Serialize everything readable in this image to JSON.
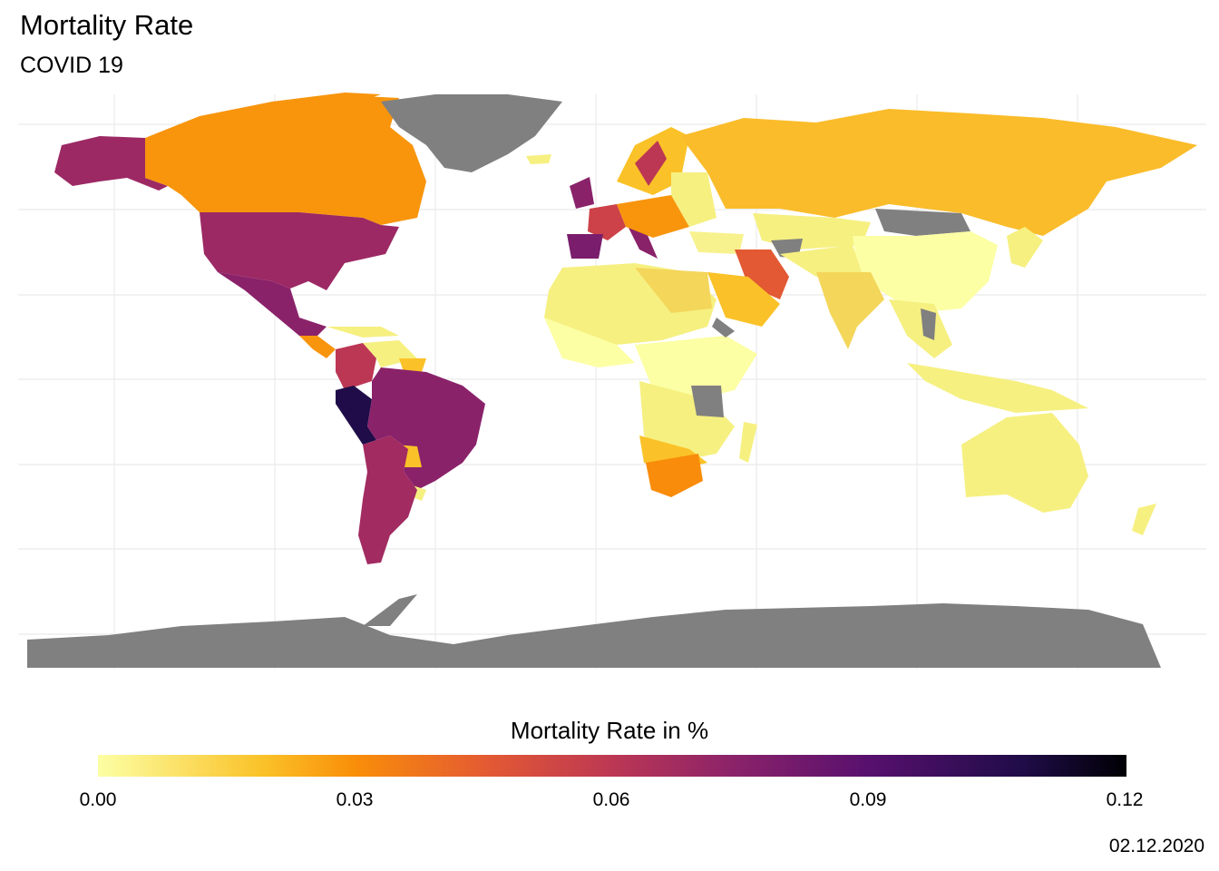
{
  "title": "Mortality Rate",
  "subtitle": "COVID 19",
  "caption": "02.12.2020",
  "legend": {
    "title": "Mortality Rate in %",
    "ticks": [
      "0.00",
      "0.03",
      "0.06",
      "0.09",
      "0.12"
    ],
    "range": [
      0,
      0.12
    ],
    "palette": "inferno (reversed)",
    "no_data_color": "#808080"
  },
  "colors": {
    "background": "#ffffff",
    "grid": "#ebebeb",
    "no_data": "#808080"
  },
  "regions": [
    {
      "name": "Alaska/USA",
      "rate": 0.075
    },
    {
      "name": "Canada",
      "rate": 0.03
    },
    {
      "name": "Greenland",
      "rate": null
    },
    {
      "name": "Mexico",
      "rate": 0.08
    },
    {
      "name": "Peru",
      "rate": 0.115
    },
    {
      "name": "Brazil",
      "rate": 0.08
    },
    {
      "name": "Argentina",
      "rate": 0.07
    },
    {
      "name": "Colombia",
      "rate": 0.07
    },
    {
      "name": "Venezuela",
      "rate": 0.005
    },
    {
      "name": "Paraguay",
      "rate": 0.02
    },
    {
      "name": "Uruguay",
      "rate": 0.005
    },
    {
      "name": "United Kingdom",
      "rate": 0.08
    },
    {
      "name": "France",
      "rate": 0.065
    },
    {
      "name": "Spain",
      "rate": 0.085
    },
    {
      "name": "Italy",
      "rate": 0.08
    },
    {
      "name": "Sweden",
      "rate": 0.06
    },
    {
      "name": "Russia",
      "rate": 0.017
    },
    {
      "name": "Iran",
      "rate": 0.05
    },
    {
      "name": "Saudi Arabia",
      "rate": 0.012
    },
    {
      "name": "India",
      "rate": 0.01
    },
    {
      "name": "China",
      "rate": 0.004
    },
    {
      "name": "Mongolia",
      "rate": null
    },
    {
      "name": "Africa",
      "rate": 0.005
    },
    {
      "name": "South Africa",
      "rate": 0.035
    },
    {
      "name": "Australia",
      "rate": 0.006
    },
    {
      "name": "Antarctica",
      "rate": null
    }
  ]
}
